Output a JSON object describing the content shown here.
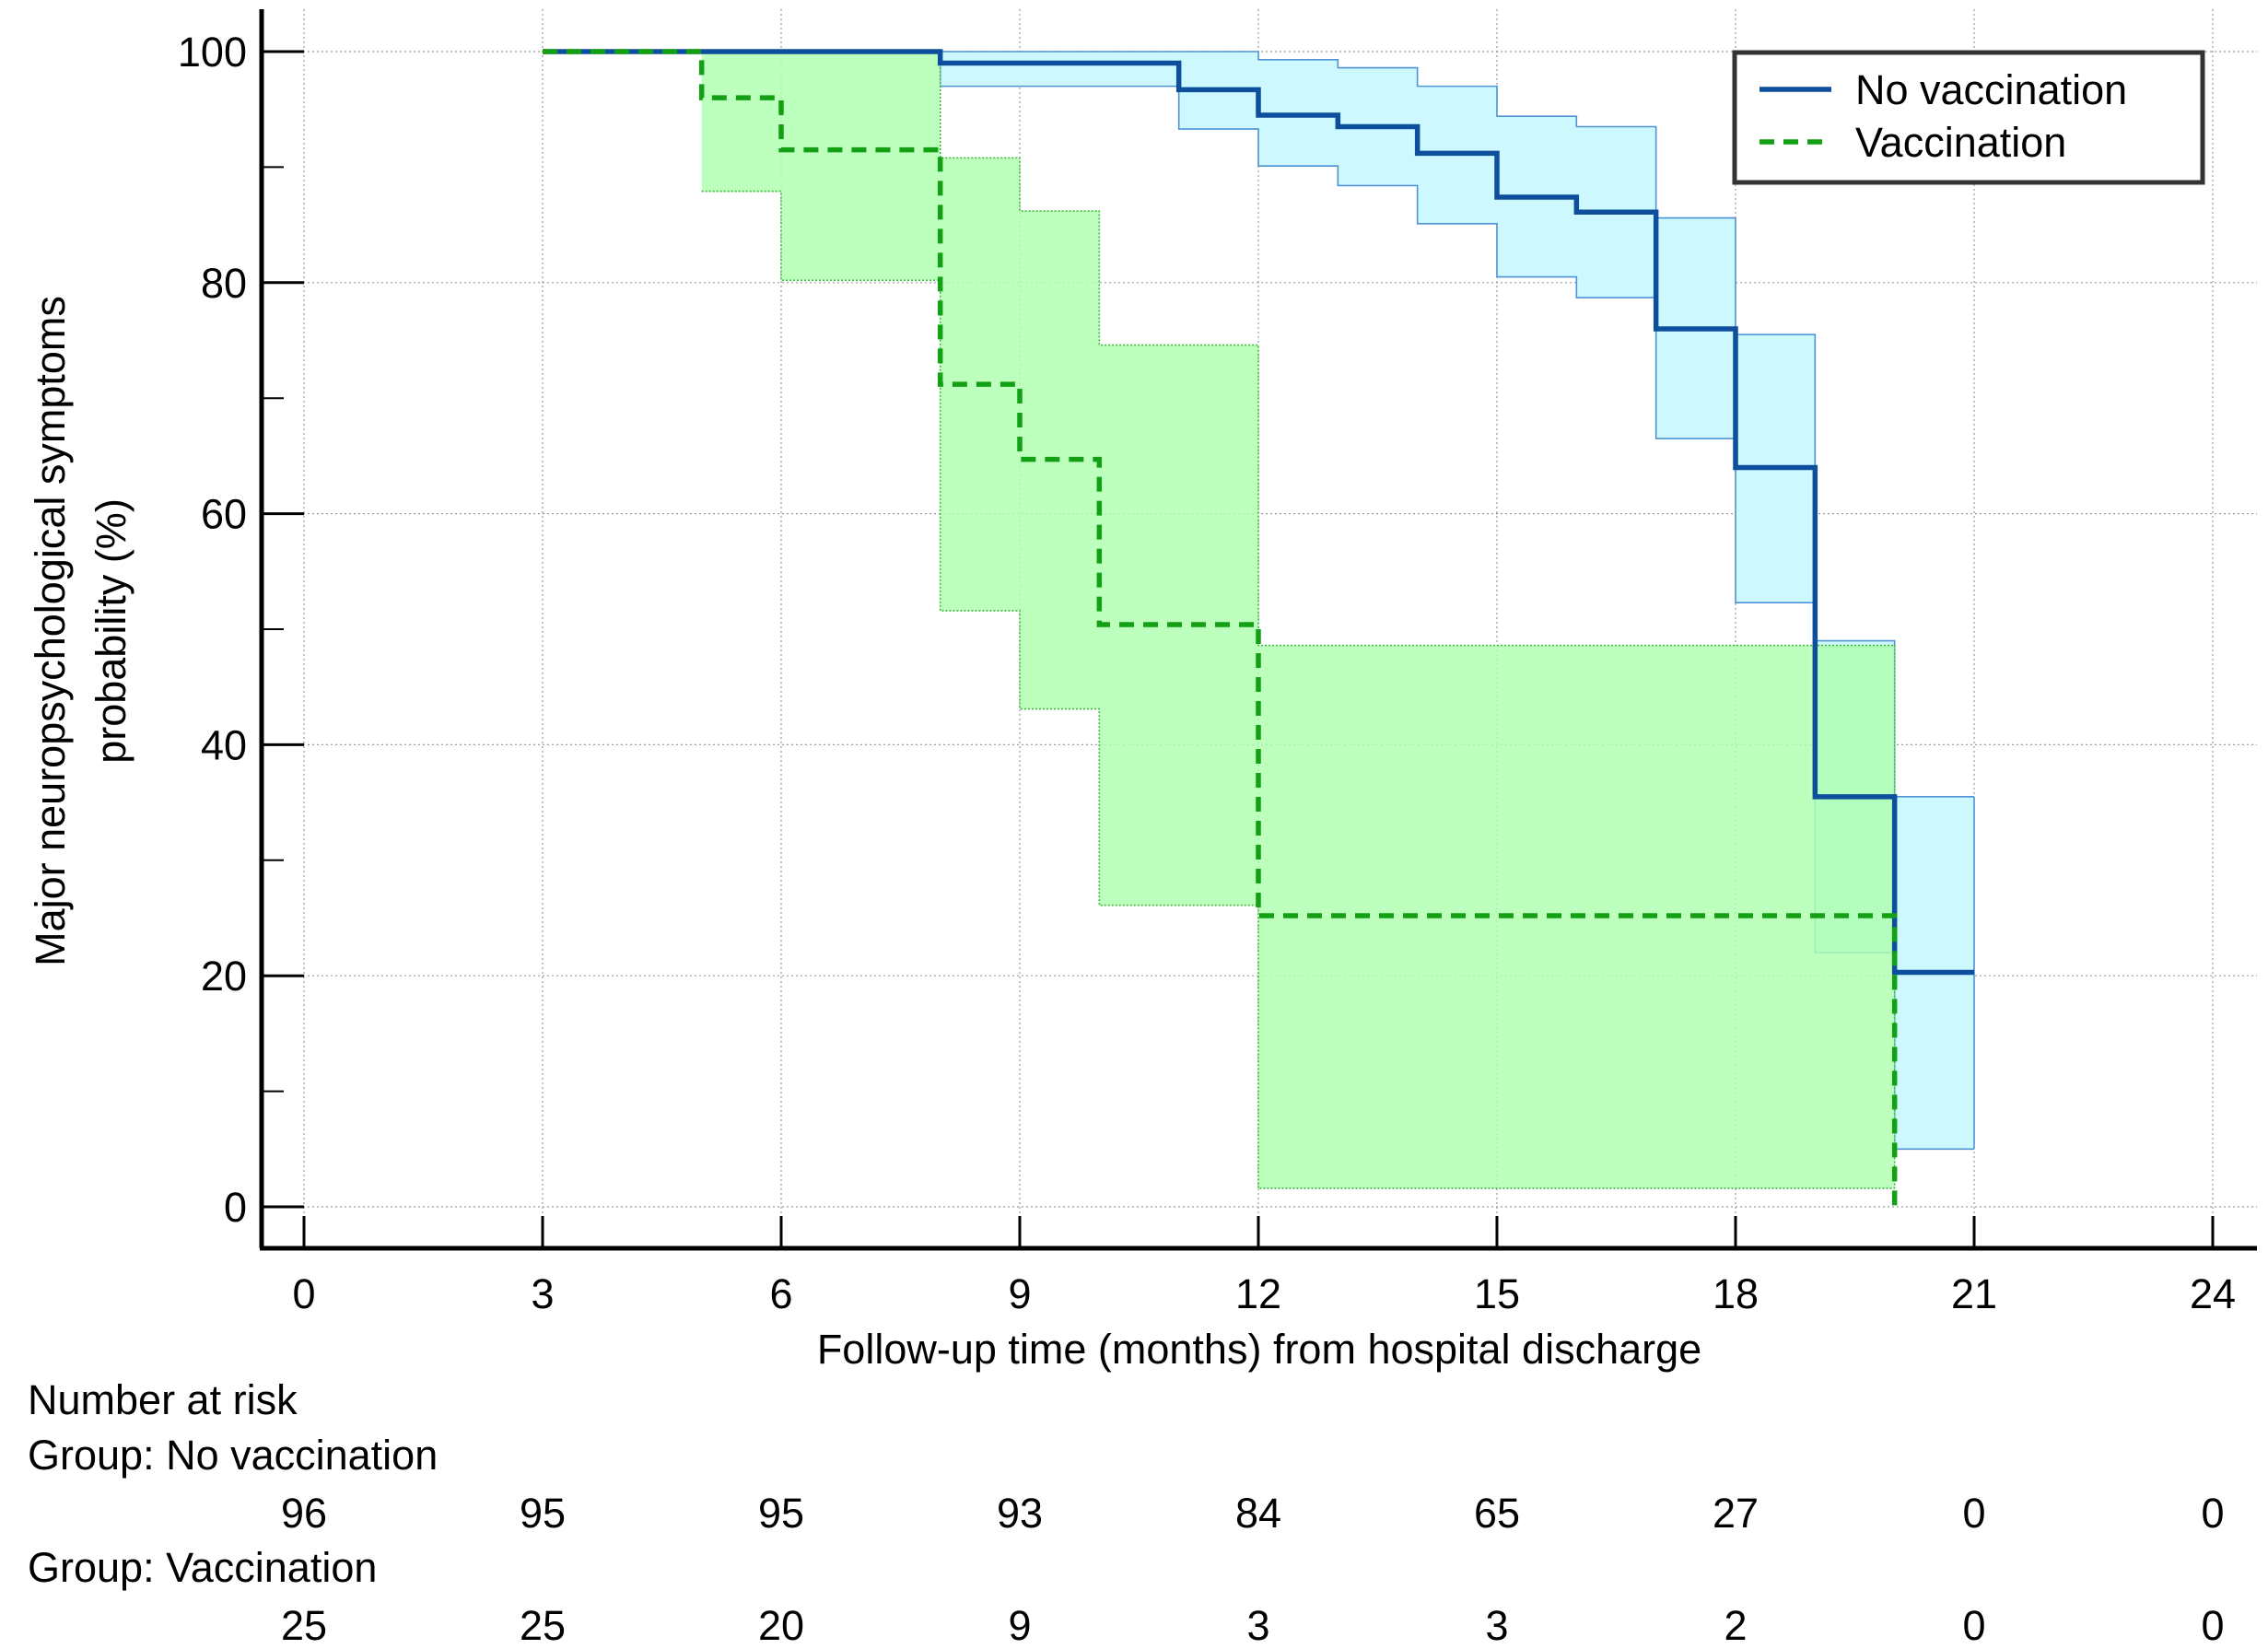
{
  "chart_data": {
    "type": "step",
    "title": "",
    "ylabel_lines": [
      "Major neuropsychological symptoms",
      "probability (%)"
    ],
    "xlabel": "Follow-up time (months) from hospital discharge",
    "xlim": [
      0,
      24
    ],
    "ylim": [
      0,
      100
    ],
    "x_ticks": [
      0,
      3,
      6,
      9,
      12,
      15,
      18,
      21,
      24
    ],
    "x_tick_labels": [
      "0",
      "3",
      "6",
      "9",
      "12",
      "15",
      "18",
      "21",
      "24"
    ],
    "y_ticks": [
      0,
      20,
      40,
      60,
      80,
      100
    ],
    "y_tick_labels": [
      "0",
      "20",
      "40",
      "60",
      "80",
      "100"
    ],
    "y_minor_ticks": [
      10,
      30,
      50,
      70,
      90
    ],
    "grid": true,
    "legend_position": "top-right",
    "series": [
      {
        "name": "No vaccination",
        "color": "#0d4f9c",
        "band_fill": "#cdf8fd",
        "band_edge": "#4f93d6",
        "line_style": "solid",
        "steps": [
          [
            3,
            100
          ],
          [
            8,
            99
          ],
          [
            11,
            96.7
          ],
          [
            12,
            94.5
          ],
          [
            13,
            93.5
          ],
          [
            14,
            91.2
          ],
          [
            15,
            87.4
          ],
          [
            16,
            86.1
          ],
          [
            17,
            76.0
          ],
          [
            18,
            64.0
          ],
          [
            19,
            35.5
          ],
          [
            20,
            20.3
          ]
        ],
        "end_x": 21,
        "ci_upper": [
          [
            3,
            100
          ],
          [
            8,
            100
          ],
          [
            12,
            99.3
          ],
          [
            13,
            98.6
          ],
          [
            14,
            97.0
          ],
          [
            15,
            94.4
          ],
          [
            16,
            93.5
          ],
          [
            17,
            85.6
          ],
          [
            18,
            75.5
          ],
          [
            19,
            49.0
          ],
          [
            20,
            35.5
          ]
        ],
        "ci_lower": [
          [
            3,
            100
          ],
          [
            8,
            97.0
          ],
          [
            11,
            93.3
          ],
          [
            12,
            90.1
          ],
          [
            13,
            88.4
          ],
          [
            14,
            85.1
          ],
          [
            15,
            80.5
          ],
          [
            16,
            78.7
          ],
          [
            17,
            66.5
          ],
          [
            18,
            52.3
          ],
          [
            19,
            22.0
          ],
          [
            20,
            5.0
          ]
        ],
        "ci_end_x": 21
      },
      {
        "name": "Vaccination",
        "color": "#14a014",
        "band_fill": "#afffaf",
        "band_edge": "#3cb83c",
        "line_style": "dashed",
        "steps": [
          [
            3,
            100
          ],
          [
            5,
            96.0
          ],
          [
            6,
            91.5
          ],
          [
            8,
            71.2
          ],
          [
            9,
            64.7
          ],
          [
            10,
            50.4
          ],
          [
            12,
            25.2
          ],
          [
            20,
            0
          ]
        ],
        "end_x": 20,
        "ci_upper": [
          [
            5,
            100
          ],
          [
            8,
            90.8
          ],
          [
            9,
            86.2
          ],
          [
            10,
            74.6
          ],
          [
            12,
            48.6
          ]
        ],
        "ci_lower": [
          [
            5,
            87.9
          ],
          [
            6,
            80.2
          ],
          [
            8,
            51.6
          ],
          [
            9,
            43.1
          ],
          [
            10,
            26.1
          ],
          [
            12,
            1.6
          ]
        ],
        "ci_end_x": 20
      }
    ],
    "number_at_risk": {
      "title": "Number at risk",
      "at_times": [
        0,
        3,
        6,
        9,
        12,
        15,
        18,
        21,
        24
      ],
      "groups": [
        {
          "label": "Group: No vaccination",
          "values": [
            96,
            95,
            95,
            93,
            84,
            65,
            27,
            0,
            0
          ]
        },
        {
          "label": "Group: Vaccination",
          "values": [
            25,
            25,
            20,
            9,
            3,
            3,
            2,
            0,
            0
          ]
        }
      ]
    }
  }
}
